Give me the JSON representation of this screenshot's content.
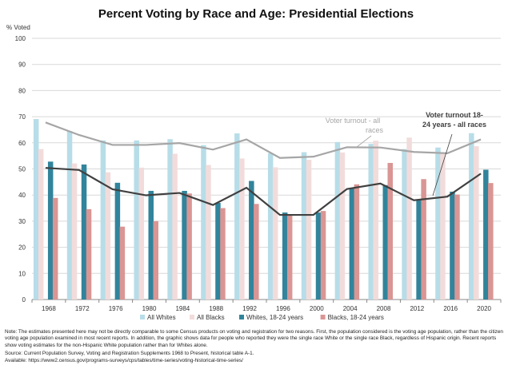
{
  "chart_data": {
    "type": "bar",
    "title": "Percent Voting by Race and Age:  Presidential Elections",
    "ylabel": "% Voted",
    "xlabel": "",
    "ylim": [
      0,
      100
    ],
    "yticks": [
      0,
      10,
      20,
      30,
      40,
      50,
      60,
      70,
      80,
      90,
      100
    ],
    "grid": true,
    "legend_placement": "bottom",
    "categories": [
      "1968",
      "1972",
      "1976",
      "1980",
      "1984",
      "1988",
      "1992",
      "1996",
      "2000",
      "2004",
      "2008",
      "2012",
      "2016",
      "2020"
    ],
    "series": [
      {
        "name": "All Whites",
        "type": "bar",
        "color": "#b7dde8",
        "values": [
          69.1,
          64.5,
          60.9,
          60.9,
          61.4,
          59.1,
          63.6,
          56.0,
          56.4,
          60.3,
          59.6,
          57.6,
          58.2,
          63.7
        ]
      },
      {
        "name": "All Blacks",
        "type": "bar",
        "color": "#f2dcdb",
        "values": [
          57.6,
          52.1,
          48.7,
          50.5,
          55.8,
          51.5,
          54.0,
          50.6,
          53.5,
          56.3,
          60.8,
          62.0,
          55.9,
          58.7
        ]
      },
      {
        "name": "Whites, 18-24 years",
        "type": "bar",
        "color": "#31849b",
        "values": [
          52.8,
          51.7,
          44.7,
          41.6,
          41.6,
          37.0,
          45.4,
          33.3,
          33.3,
          42.5,
          43.8,
          38.2,
          41.3,
          49.7
        ]
      },
      {
        "name": "Blacks, 18-24 years",
        "type": "bar",
        "color": "#d99694",
        "values": [
          38.9,
          34.6,
          27.9,
          30.0,
          40.6,
          35.0,
          36.6,
          32.1,
          33.9,
          44.1,
          52.3,
          46.1,
          40.2,
          44.6
        ]
      },
      {
        "type": "line",
        "color": "#a6a6a6",
        "values": [
          67.8,
          63.0,
          59.2,
          59.2,
          59.9,
          57.4,
          61.3,
          54.2,
          54.7,
          58.3,
          58.2,
          56.5,
          56.0,
          61.3
        ]
      },
      {
        "type": "line",
        "color": "#404040",
        "values": [
          50.4,
          49.6,
          42.2,
          39.9,
          40.8,
          36.2,
          42.8,
          32.4,
          32.4,
          42.3,
          44.4,
          38.0,
          39.4,
          48.2
        ]
      }
    ],
    "annotations": [
      {
        "text": "Voter turnout - all races",
        "color": "#a6a6a6",
        "series_index": 4
      },
      {
        "text": "Voter turnout 18-24 years - all races",
        "color": "#404040",
        "series_index": 5
      }
    ]
  },
  "notes": {
    "note": "Note: The estimates presented here may not be directly comparable to some Census products on voting and registration for two reasons. First, the population considered is the voting age population, rather than the citizen voting age population examined in most recent reports. In addition, the graphic shows data for people who reported they were the single race White or the single race Black, regardless of Hispanic origin. Recent reports show voting estimates for the non-Hispanic White population rather than for Whites alone.",
    "source": "Source: Current Population Survey, Voting and Registration Supplements 1968 to Present, historical table A-1.",
    "available": "Available: https://www2.census.gov/programs-surveys/cps/tables/time-series/voting-historical-time-series/"
  }
}
